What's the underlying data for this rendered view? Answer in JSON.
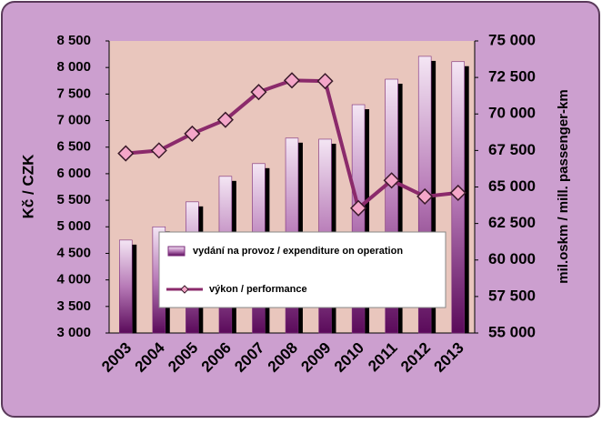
{
  "chart_data": {
    "type": "bar-line",
    "categories": [
      "2003",
      "2004",
      "2005",
      "2006",
      "2007",
      "2008",
      "2009",
      "2010",
      "2011",
      "2012",
      "2013"
    ],
    "series": [
      {
        "name": "vydání na provoz / expenditure on operation",
        "type": "bar",
        "color": "#7a2a7a",
        "values": [
          4750,
          5000,
          5470,
          5950,
          6190,
          6670,
          6650,
          7300,
          7780,
          8210,
          8110
        ]
      },
      {
        "name": "výkon / performance",
        "type": "line",
        "axis": "y2",
        "color": "#8b2a6b",
        "values": [
          67300,
          67500,
          68650,
          69600,
          71500,
          72300,
          72250,
          63550,
          65450,
          64350,
          64600
        ]
      }
    ],
    "y_label": "Kč / CZK",
    "y2_label": "mil.oskm / mill. passenger-km",
    "ylim": [
      3000,
      8500
    ],
    "yticks": [
      {
        "value": 3000,
        "label": "3 000"
      },
      {
        "value": 3500,
        "label": "3 500"
      },
      {
        "value": 4000,
        "label": "4 000"
      },
      {
        "value": 4500,
        "label": "4 500"
      },
      {
        "value": 5000,
        "label": "5 000"
      },
      {
        "value": 5500,
        "label": "5 500"
      },
      {
        "value": 6000,
        "label": "6 000"
      },
      {
        "value": 6500,
        "label": "6 500"
      },
      {
        "value": 7000,
        "label": "7 000"
      },
      {
        "value": 7500,
        "label": "7 500"
      },
      {
        "value": 8000,
        "label": "8 000"
      },
      {
        "value": 8500,
        "label": "8 500"
      }
    ],
    "y2lim": [
      55000,
      75000
    ],
    "y2ticks": [
      {
        "value": 55000,
        "label": "55 000"
      },
      {
        "value": 57500,
        "label": "57 500"
      },
      {
        "value": 60000,
        "label": "60 000"
      },
      {
        "value": 62500,
        "label": "62 500"
      },
      {
        "value": 65000,
        "label": "65 000"
      },
      {
        "value": 67500,
        "label": "67 500"
      },
      {
        "value": 70000,
        "label": "70 000"
      },
      {
        "value": 72500,
        "label": "72 500"
      },
      {
        "value": 75000,
        "label": "75 000"
      }
    ],
    "grid": false
  }
}
